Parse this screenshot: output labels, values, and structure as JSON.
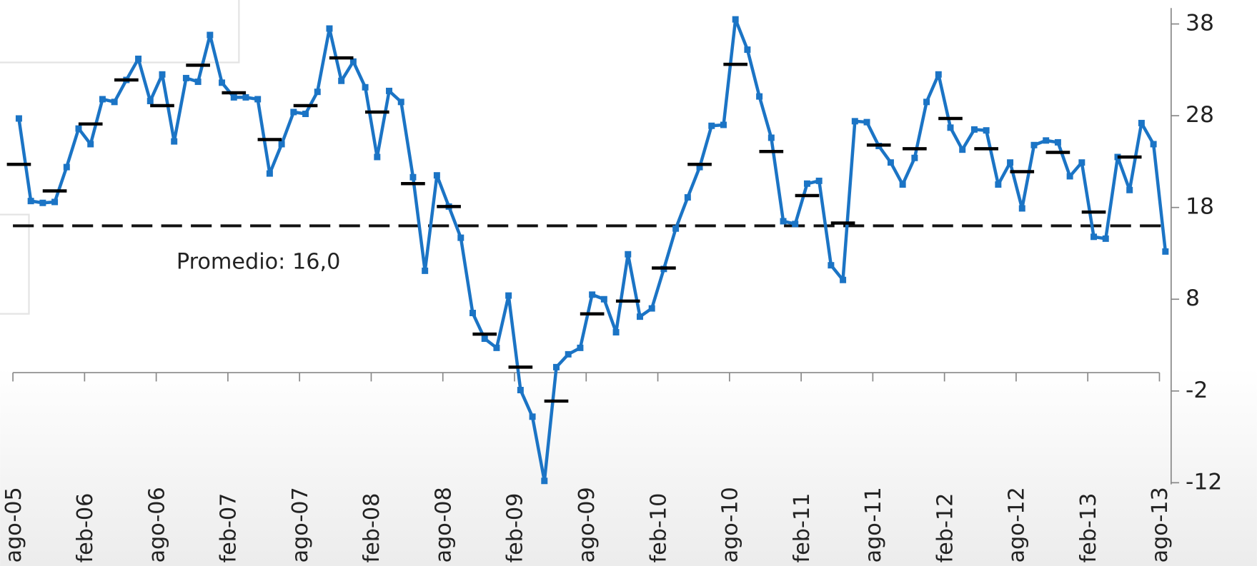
{
  "chart_data": {
    "type": "line",
    "categories": [
      "ago-05",
      null,
      null,
      null,
      null,
      null,
      "feb-06",
      null,
      null,
      null,
      null,
      null,
      "ago-06",
      null,
      null,
      null,
      null,
      null,
      "feb-07",
      null,
      null,
      null,
      null,
      null,
      "ago-07",
      null,
      null,
      null,
      null,
      null,
      "feb-08",
      null,
      null,
      null,
      null,
      null,
      "ago-08",
      null,
      null,
      null,
      null,
      null,
      "feb-09",
      null,
      null,
      null,
      null,
      null,
      "ago-09",
      null,
      null,
      null,
      null,
      null,
      "feb-10",
      null,
      null,
      null,
      null,
      null,
      "ago-10",
      null,
      null,
      null,
      null,
      null,
      "feb-11",
      null,
      null,
      null,
      null,
      null,
      "ago-11",
      null,
      null,
      null,
      null,
      null,
      "feb-12",
      null,
      null,
      null,
      null,
      null,
      "ago-12",
      null,
      null,
      null,
      null,
      null,
      "feb-13",
      null,
      null,
      null,
      null,
      null,
      "ago-13"
    ],
    "series": [
      {
        "color": "#1b74c5",
        "style": "line",
        "values": [
          27.7,
          18.7,
          18.5,
          18.6,
          22.4,
          26.6,
          24.9,
          29.8,
          29.5,
          31.9,
          34.2,
          29.6,
          32.5,
          25.2,
          32.1,
          31.7,
          36.8,
          31.6,
          30.0,
          30.0,
          29.8,
          21.7,
          24.9,
          28.4,
          28.2,
          30.6,
          37.5,
          31.8,
          33.9,
          31.1,
          23.5,
          30.7,
          29.5,
          21.3,
          11.1,
          21.5,
          18.1,
          14.7,
          6.5,
          3.7,
          2.7,
          8.4,
          -1.9,
          -4.8,
          -11.8,
          0.6,
          2.0,
          2.7,
          8.5,
          8.0,
          4.4,
          12.9,
          6.1,
          7.0,
          11.3,
          15.7,
          19.1,
          22.4,
          26.9,
          27.0,
          38.5,
          35.2,
          30.1,
          25.6,
          16.5,
          16.2,
          20.6,
          20.9,
          11.7,
          10.1,
          27.4,
          27.3,
          24.7,
          22.9,
          20.5,
          23.4,
          29.5,
          32.5,
          26.7,
          24.3,
          26.5,
          26.4,
          20.5,
          22.9,
          17.9,
          24.8,
          25.3,
          25.1,
          21.4,
          22.9,
          14.8,
          14.6,
          23.5,
          19.9,
          27.2,
          24.9,
          13.2
        ]
      },
      {
        "color": "#000000",
        "style": "dash",
        "values": [
          22.7,
          null,
          null,
          19.8,
          null,
          null,
          27.1,
          null,
          null,
          31.9,
          null,
          null,
          29.1,
          null,
          null,
          33.5,
          null,
          null,
          30.5,
          null,
          null,
          25.4,
          null,
          null,
          29.1,
          null,
          null,
          34.3,
          null,
          null,
          28.4,
          null,
          null,
          20.6,
          null,
          null,
          18.1,
          null,
          null,
          4.2,
          null,
          null,
          0.6,
          null,
          null,
          -3.1,
          null,
          null,
          6.4,
          null,
          null,
          7.8,
          null,
          null,
          11.4,
          null,
          null,
          22.7,
          null,
          null,
          33.6,
          null,
          null,
          24.1,
          null,
          null,
          19.3,
          null,
          null,
          16.3,
          null,
          null,
          24.8,
          null,
          null,
          24.4,
          null,
          null,
          27.7,
          null,
          null,
          24.4,
          null,
          null,
          21.9,
          null,
          null,
          24.0,
          null,
          null,
          17.5,
          null,
          null,
          23.5,
          null,
          null,
          null
        ]
      }
    ],
    "average": 16.0,
    "annotation": "Promedio: 16,0",
    "ylim": [
      -12,
      40
    ],
    "yticks": [
      38,
      28,
      18,
      8,
      -2,
      -12
    ],
    "axis_side": "right",
    "grid": false
  }
}
